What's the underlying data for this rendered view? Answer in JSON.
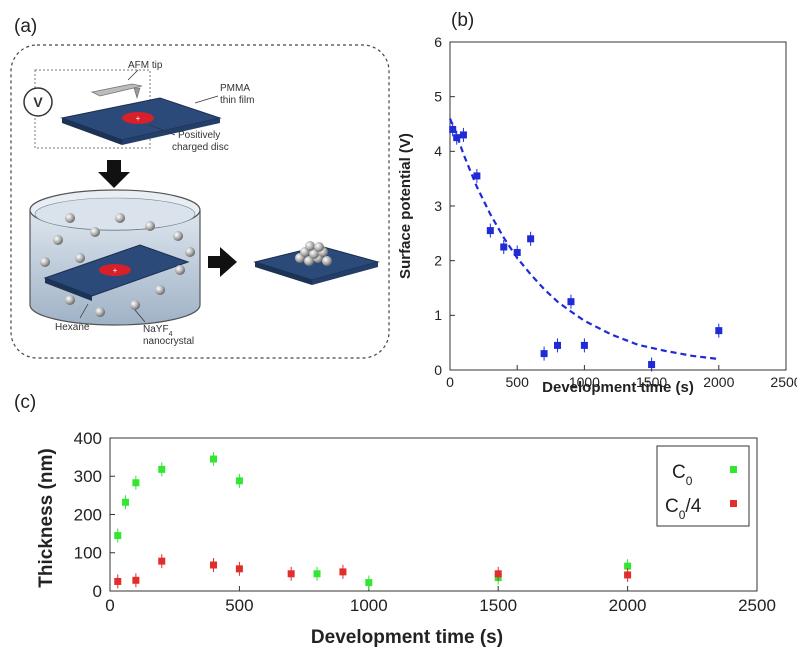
{
  "panel_labels": {
    "a": "(a)",
    "b": "(b)",
    "c": "(c)"
  },
  "schematic": {
    "labels": {
      "afm_tip": "AFM tip",
      "pmma_1": "PMMA",
      "pmma_2": "thin film",
      "voltage": "V",
      "disc_1": "Positively",
      "disc_2": "charged disc",
      "hexane": "Hexane",
      "nayf_1": "NaYF",
      "nayf_sub": "4",
      "nayf_2": "nanocrystal"
    },
    "colors": {
      "substrate": "#2b4a7a",
      "disc": "#d8202a",
      "liquid": "#b9c9d9"
    }
  },
  "chart_data": [
    {
      "id": "b",
      "type": "scatter",
      "xlabel": "Development time (s)",
      "ylabel": "Surface potential (V)",
      "xlim": [
        0,
        2500
      ],
      "ylim": [
        0,
        6
      ],
      "xticks": [
        0,
        500,
        1000,
        1500,
        2000,
        2500
      ],
      "yticks": [
        0,
        1,
        2,
        3,
        4,
        5,
        6
      ],
      "grid": false,
      "series": [
        {
          "color": "#1f2bd6",
          "marker": "square",
          "x": [
            20,
            50,
            100,
            200,
            300,
            400,
            500,
            600,
            700,
            800,
            900,
            1000,
            1500,
            2000
          ],
          "y": [
            4.4,
            4.25,
            4.3,
            3.55,
            2.55,
            2.25,
            2.15,
            2.4,
            0.3,
            0.45,
            1.25,
            0.45,
            0.1,
            0.72
          ]
        }
      ],
      "fit": {
        "style": "dashed",
        "color": "#1f2bd6",
        "x": [
          0,
          50,
          100,
          150,
          200,
          300,
          400,
          500,
          600,
          700,
          800,
          900,
          1000,
          1200,
          1400,
          1600,
          1800,
          2000
        ],
        "y": [
          4.6,
          4.3,
          3.95,
          3.65,
          3.35,
          2.85,
          2.42,
          2.05,
          1.75,
          1.48,
          1.25,
          1.07,
          0.9,
          0.65,
          0.46,
          0.35,
          0.26,
          0.2
        ]
      }
    },
    {
      "id": "c",
      "type": "scatter",
      "xlabel": "Development time (s)",
      "ylabel": "Thickness (nm)",
      "xlim": [
        0,
        2500
      ],
      "ylim": [
        0,
        400
      ],
      "xticks": [
        0,
        500,
        1000,
        1500,
        2000,
        2500
      ],
      "yticks": [
        0,
        100,
        200,
        300,
        400
      ],
      "grid": false,
      "legend": {
        "placement": "top-right",
        "c0_main": "C",
        "c0_sub": "0",
        "c04_main": "C",
        "c04_sub": "0",
        "c04_tail": "/4"
      },
      "series": [
        {
          "legend": "c0",
          "color": "#33e633",
          "marker": "square",
          "x": [
            30,
            60,
            100,
            200,
            400,
            500,
            800,
            1000,
            1500,
            2000
          ],
          "y": [
            145,
            232,
            283,
            318,
            345,
            288,
            45,
            22,
            35,
            65
          ]
        },
        {
          "legend": "c04",
          "color": "#e22d2d",
          "marker": "square",
          "x": [
            30,
            100,
            200,
            400,
            500,
            700,
            900,
            1500,
            2000
          ],
          "y": [
            25,
            28,
            78,
            68,
            58,
            45,
            50,
            45,
            42
          ]
        }
      ]
    }
  ]
}
